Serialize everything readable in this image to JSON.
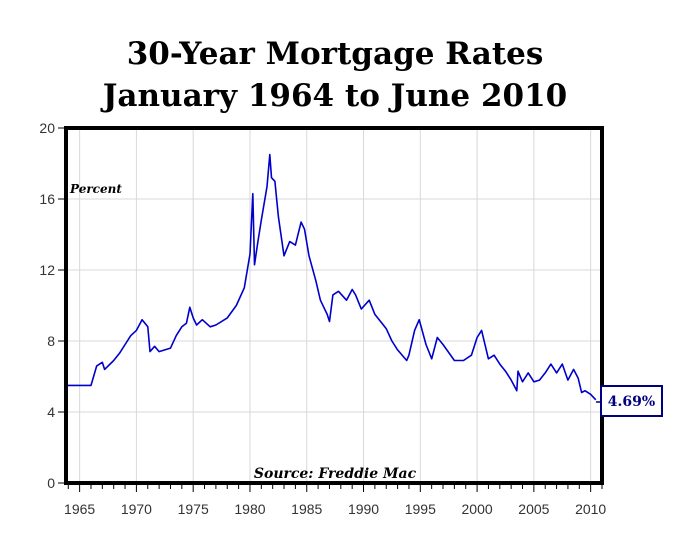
{
  "chart_data": {
    "type": "line",
    "title": "30-Year Mortgage Rates",
    "subtitle": "January 1964 to June 2010",
    "ylabel": "Percent",
    "source": "Source: Freddie Mac",
    "xlim": [
      1963.8,
      2011.0
    ],
    "ylim": [
      0,
      20
    ],
    "yticks": [
      "0",
      "4",
      "8",
      "12",
      "16",
      "20"
    ],
    "xticks": [
      "1965",
      "1970",
      "1975",
      "1980",
      "1985",
      "1990",
      "1995",
      "2000",
      "2005",
      "2010"
    ],
    "grid": true,
    "line_color": "#0000cc",
    "callout": {
      "text": "4.69%",
      "value": 4.69
    },
    "series": [
      {
        "x": [
          1963.9,
          1965.0,
          1966.0,
          1966.5,
          1967.0,
          1967.2,
          1968.0,
          1968.5,
          1969.0,
          1969.5,
          1970.0,
          1970.5,
          1971.0,
          1971.2,
          1971.6,
          1972.0,
          1973.0,
          1973.5,
          1974.0,
          1974.4,
          1974.7,
          1975.0,
          1975.3,
          1975.8,
          1976.5,
          1977.0,
          1978.0,
          1978.8,
          1979.5,
          1980.0,
          1980.25,
          1980.4,
          1980.7,
          1981.0,
          1981.5,
          1981.75,
          1981.9,
          1982.2,
          1982.5,
          1983.0,
          1983.5,
          1984.0,
          1984.5,
          1984.8,
          1985.2,
          1985.8,
          1986.2,
          1986.5,
          1986.8,
          1987.0,
          1987.3,
          1987.8,
          1988.5,
          1989.0,
          1989.3,
          1989.8,
          1990.5,
          1991.0,
          1992.0,
          1992.5,
          1993.0,
          1993.8,
          1994.0,
          1994.5,
          1994.9,
          1995.5,
          1996.0,
          1996.5,
          1997.0,
          1998.0,
          1998.8,
          1999.5,
          2000.0,
          2000.4,
          2001.0,
          2001.5,
          2002.0,
          2002.5,
          2003.0,
          2003.5,
          2003.6,
          2004.0,
          2004.5,
          2005.0,
          2005.5,
          2006.0,
          2006.5,
          2007.0,
          2007.5,
          2008.0,
          2008.5,
          2008.9,
          2009.2,
          2009.5,
          2010.0,
          2010.45
        ],
        "y": [
          5.5,
          5.5,
          5.5,
          6.6,
          6.8,
          6.4,
          6.9,
          7.3,
          7.8,
          8.3,
          8.6,
          9.2,
          8.8,
          7.4,
          7.7,
          7.4,
          7.6,
          8.3,
          8.8,
          9.0,
          9.9,
          9.3,
          8.9,
          9.2,
          8.8,
          8.9,
          9.3,
          10.0,
          11.0,
          12.9,
          16.3,
          12.3,
          13.6,
          14.8,
          16.7,
          18.5,
          17.2,
          17.0,
          15.0,
          12.8,
          13.6,
          13.4,
          14.7,
          14.3,
          12.8,
          11.4,
          10.3,
          9.9,
          9.5,
          9.1,
          10.6,
          10.8,
          10.3,
          10.9,
          10.6,
          9.8,
          10.3,
          9.5,
          8.7,
          8.0,
          7.5,
          6.9,
          7.2,
          8.6,
          9.2,
          7.8,
          7.0,
          8.2,
          7.8,
          6.9,
          6.9,
          7.2,
          8.2,
          8.6,
          7.0,
          7.2,
          6.7,
          6.3,
          5.8,
          5.2,
          6.3,
          5.7,
          6.2,
          5.7,
          5.8,
          6.2,
          6.7,
          6.2,
          6.7,
          5.8,
          6.4,
          5.9,
          5.1,
          5.2,
          5.0,
          4.69
        ]
      }
    ]
  }
}
